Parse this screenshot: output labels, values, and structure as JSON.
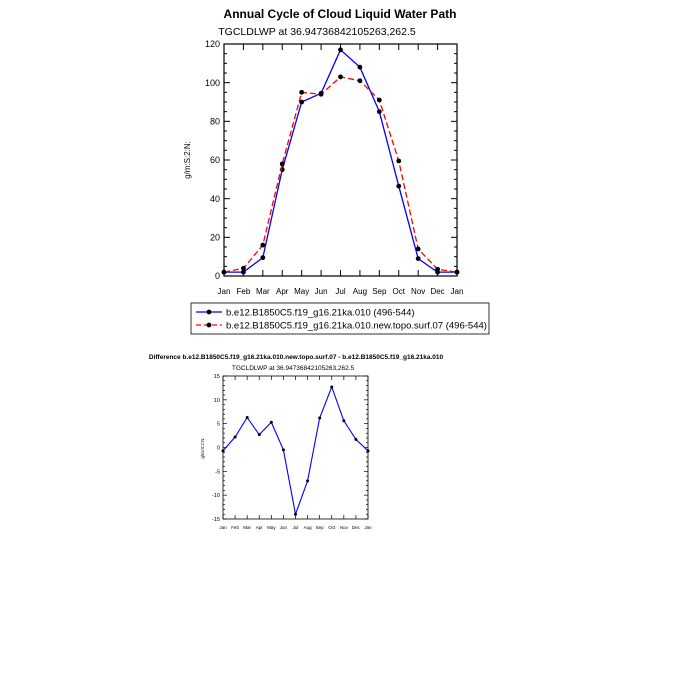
{
  "chart_data": [
    {
      "type": "line",
      "title": "Annual Cycle of Cloud Liquid Water Path",
      "subtitle": "TGCLDLWP at 36.94736842105263,262.5",
      "xlabel": "",
      "ylabel": "g/m:S:2:N:",
      "categories": [
        "Jan",
        "Feb",
        "Mar",
        "Apr",
        "May",
        "Jun",
        "Jul",
        "Aug",
        "Sep",
        "Oct",
        "Nov",
        "Dec",
        "Jan"
      ],
      "ylim": [
        0,
        120
      ],
      "yticks": [
        0,
        20,
        40,
        60,
        80,
        100,
        120
      ],
      "grid": false,
      "legend_position": "bottom",
      "series": [
        {
          "name": "b.e12.B1850C5.f19_g16.21ka.010 (496-544)",
          "color": "#0000ff",
          "dash": "solid",
          "values": [
            2,
            2,
            9.5,
            55,
            90,
            94.5,
            117,
            108,
            85,
            46.5,
            9,
            2,
            2
          ]
        },
        {
          "name": "b.e12.B1850C5.f19_g16.21ka.010.new.topo.surf.07 (496-544)",
          "color": "#ff0000",
          "dash": "dashed",
          "values": [
            2,
            4,
            16,
            58,
            95,
            94,
            103,
            101,
            91,
            59.5,
            14,
            3.5,
            2
          ]
        }
      ]
    },
    {
      "type": "line",
      "title": "Difference b.e12.B1850C5.f19_g16.21ka.010.new.topo.surf.07 - b.e12.B1850C5.f19_g16.21ka.010",
      "subtitle": "TGCLDLWP at 36.94736842105263,262.5",
      "xlabel": "",
      "ylabel": "g/m:S:2:N:",
      "categories": [
        "Jan",
        "Feb",
        "Mar",
        "Apr",
        "May",
        "Jun",
        "Jul",
        "Aug",
        "Sep",
        "Oct",
        "Nov",
        "Dec",
        "Jan"
      ],
      "ylim": [
        -15,
        15
      ],
      "yticks": [
        -15,
        -10,
        -5,
        0,
        5,
        10,
        15
      ],
      "grid": false,
      "series": [
        {
          "color": "#0000ff",
          "dash": "solid",
          "values": [
            -0.7,
            2.2,
            6.3,
            2.7,
            5.3,
            -0.5,
            -14,
            -7,
            6.2,
            12.7,
            5.6,
            1.7,
            -0.7
          ]
        }
      ]
    }
  ]
}
